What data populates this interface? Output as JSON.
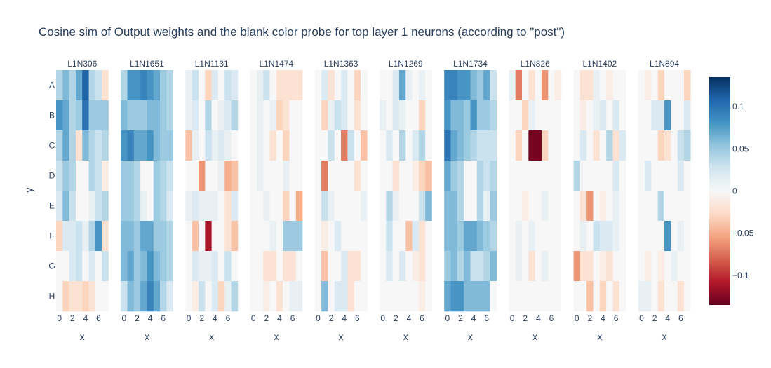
{
  "chart_data": {
    "type": "heatmap",
    "title": "Cosine sim of Output weights and the blank color probe for top layer 1 neurons (according to \"post\")",
    "ylabel": "y",
    "xlabel": "x",
    "x_ticks": [
      "0",
      "2",
      "4",
      "6"
    ],
    "x_tick_values": [
      0,
      2,
      4,
      6
    ],
    "y_categories": [
      "A",
      "B",
      "C",
      "D",
      "E",
      "F",
      "G",
      "H"
    ],
    "colorscale": "RdBu",
    "zmin": -0.135,
    "zmax": 0.135,
    "colorbar_ticks": [
      {
        "value": 0.1,
        "label": "0.1"
      },
      {
        "value": 0.05,
        "label": "0.05"
      },
      {
        "value": 0,
        "label": "0"
      },
      {
        "value": -0.05,
        "label": "−0.05"
      },
      {
        "value": -0.1,
        "label": "−0.1"
      }
    ],
    "panels": [
      {
        "name": "L1N306",
        "z": [
          [
            0.04,
            0.06,
            0.04,
            0.07,
            0.11,
            0.04,
            0.03,
            -0.02
          ],
          [
            0.08,
            0.07,
            0.04,
            0.05,
            0.1,
            0.05,
            0.05,
            0.05
          ],
          [
            0.04,
            0.07,
            0.04,
            -0.02,
            0.06,
            0.04,
            0.03,
            0.04
          ],
          [
            0.03,
            0.05,
            0.04,
            0.0,
            0.0,
            0.04,
            0.03,
            -0.01
          ],
          [
            0.02,
            0.06,
            0.03,
            0.0,
            0.0,
            0.01,
            0.03,
            0.04
          ],
          [
            -0.03,
            0.02,
            0.02,
            0.03,
            0.01,
            0.04,
            0.08,
            -0.02
          ],
          [
            0.0,
            0.0,
            0.02,
            0.03,
            0.0,
            0.02,
            0.0,
            0.03
          ],
          [
            0.0,
            -0.03,
            -0.02,
            -0.02,
            -0.03,
            -0.02,
            0.0,
            0.0
          ]
        ]
      },
      {
        "name": "L1N1651",
        "z": [
          [
            0.04,
            0.08,
            0.08,
            0.09,
            0.08,
            0.07,
            0.05,
            0.04
          ],
          [
            0.06,
            0.05,
            0.05,
            0.05,
            0.06,
            0.06,
            0.05,
            0.04
          ],
          [
            0.08,
            0.09,
            0.07,
            0.07,
            0.08,
            0.06,
            0.05,
            0.05
          ],
          [
            0.05,
            0.05,
            0.04,
            0.0,
            0.0,
            0.05,
            0.04,
            0.03
          ],
          [
            0.05,
            0.05,
            0.04,
            0.01,
            0.0,
            0.05,
            0.04,
            0.02
          ],
          [
            0.06,
            0.06,
            0.05,
            0.07,
            0.07,
            0.05,
            0.05,
            0.04
          ],
          [
            0.06,
            0.07,
            0.05,
            0.06,
            0.08,
            0.06,
            0.05,
            0.04
          ],
          [
            0.03,
            0.06,
            0.05,
            0.07,
            0.09,
            0.07,
            0.04,
            0.02
          ]
        ]
      },
      {
        "name": "L1N1131",
        "z": [
          [
            0.01,
            0.03,
            0.0,
            -0.03,
            0.02,
            0.0,
            0.03,
            0.02
          ],
          [
            0.01,
            0.02,
            0.0,
            0.04,
            0.0,
            0.01,
            0.02,
            0.04
          ],
          [
            -0.04,
            0.01,
            0.0,
            0.03,
            0.01,
            0.02,
            0.01,
            0.0
          ],
          [
            0.0,
            0.0,
            -0.06,
            0.0,
            0.0,
            0.01,
            -0.05,
            -0.04
          ],
          [
            0.01,
            0.02,
            0.01,
            0.01,
            0.01,
            0.0,
            -0.02,
            0.02
          ],
          [
            0.0,
            -0.04,
            0.0,
            -0.11,
            0.0,
            0.0,
            -0.02,
            -0.04
          ],
          [
            0.0,
            0.02,
            0.01,
            0.01,
            0.02,
            0.0,
            0.03,
            0.0
          ],
          [
            0.0,
            -0.01,
            0.03,
            0.0,
            0.02,
            -0.03,
            0.01,
            0.04
          ]
        ]
      },
      {
        "name": "L1N1474",
        "z": [
          [
            0.0,
            0.01,
            0.03,
            0.0,
            -0.02,
            -0.02,
            -0.02,
            -0.02
          ],
          [
            0.0,
            0.01,
            0.0,
            0.01,
            -0.03,
            -0.02,
            0.0,
            0.0
          ],
          [
            0.0,
            0.01,
            0.0,
            -0.02,
            0.0,
            -0.03,
            0.0,
            0.0
          ],
          [
            0.0,
            0.01,
            0.0,
            0.0,
            0.0,
            0.01,
            0.0,
            0.0
          ],
          [
            0.0,
            0.0,
            0.01,
            0.0,
            0.0,
            -0.03,
            0.0,
            -0.05
          ],
          [
            0.0,
            0.0,
            0.0,
            0.01,
            0.0,
            0.05,
            0.05,
            0.05
          ],
          [
            0.0,
            0.0,
            -0.02,
            -0.02,
            0.0,
            -0.02,
            -0.02,
            0.0
          ],
          [
            0.0,
            0.0,
            -0.01,
            0.0,
            -0.02,
            0.0,
            0.01,
            0.01
          ]
        ]
      },
      {
        "name": "L1N1363",
        "z": [
          [
            0.0,
            0.02,
            -0.02,
            0.0,
            0.02,
            0.0,
            -0.03,
            0.0
          ],
          [
            0.0,
            -0.03,
            0.01,
            0.03,
            0.02,
            0.0,
            -0.02,
            0.0
          ],
          [
            0.0,
            0.0,
            0.03,
            0.0,
            -0.07,
            0.03,
            0.0,
            -0.04
          ],
          [
            0.0,
            -0.07,
            0.0,
            0.0,
            0.0,
            0.0,
            -0.02,
            0.0
          ],
          [
            0.0,
            0.03,
            0.01,
            0.0,
            0.0,
            0.0,
            0.0,
            0.01
          ],
          [
            0.0,
            -0.01,
            0.0,
            0.02,
            0.0,
            0.0,
            0.0,
            0.0
          ],
          [
            0.0,
            -0.04,
            0.0,
            0.0,
            0.02,
            -0.02,
            -0.02,
            0.0
          ],
          [
            0.0,
            0.06,
            0.0,
            0.02,
            0.02,
            -0.02,
            0.0,
            0.0
          ]
        ]
      },
      {
        "name": "L1N1269",
        "z": [
          [
            0.0,
            0.0,
            0.02,
            0.07,
            0.01,
            0.0,
            0.01,
            0.0
          ],
          [
            0.01,
            0.0,
            0.02,
            0.01,
            0.0,
            0.0,
            -0.03,
            0.0
          ],
          [
            0.0,
            0.02,
            0.0,
            0.04,
            0.0,
            0.02,
            0.04,
            0.0
          ],
          [
            0.0,
            0.0,
            -0.02,
            0.0,
            0.0,
            -0.01,
            -0.03,
            -0.04
          ],
          [
            0.0,
            0.04,
            0.01,
            0.0,
            0.0,
            0.0,
            0.03,
            0.06
          ],
          [
            0.0,
            0.03,
            0.0,
            0.0,
            -0.04,
            0.02,
            -0.02,
            0.0
          ],
          [
            0.0,
            0.02,
            0.0,
            0.02,
            0.0,
            -0.01,
            -0.02,
            0.0
          ],
          [
            0.0,
            0.0,
            0.0,
            0.0,
            0.0,
            0.0,
            -0.01,
            0.0
          ]
        ]
      },
      {
        "name": "L1N1734",
        "z": [
          [
            0.09,
            0.09,
            0.08,
            0.08,
            0.06,
            0.05,
            0.07,
            0.03
          ],
          [
            0.08,
            0.06,
            0.06,
            0.05,
            0.08,
            0.05,
            0.05,
            0.04
          ],
          [
            0.1,
            0.07,
            0.06,
            0.05,
            0.04,
            0.03,
            0.03,
            0.03
          ],
          [
            0.07,
            0.05,
            0.04,
            0.0,
            0.0,
            0.04,
            0.03,
            0.04
          ],
          [
            0.06,
            0.06,
            0.04,
            0.0,
            0.0,
            0.04,
            0.01,
            0.05
          ],
          [
            0.06,
            0.06,
            0.05,
            0.07,
            0.07,
            0.06,
            0.05,
            0.04
          ],
          [
            0.05,
            0.06,
            0.04,
            0.06,
            0.03,
            0.03,
            0.04,
            0.06
          ],
          [
            0.07,
            0.08,
            0.08,
            0.06,
            0.06,
            0.06,
            0.06,
            0.0
          ]
        ]
      },
      {
        "name": "L1N826",
        "z": [
          [
            0.01,
            -0.07,
            0.0,
            -0.02,
            0.0,
            -0.06,
            0.0,
            -0.01
          ],
          [
            0.0,
            0.0,
            -0.03,
            0.01,
            0.0,
            0.0,
            0.0,
            0.0
          ],
          [
            0.0,
            -0.03,
            0.0,
            -0.13,
            -0.13,
            -0.03,
            0.0,
            0.0
          ],
          [
            0.0,
            0.0,
            0.0,
            0.0,
            0.0,
            0.0,
            0.0,
            0.0
          ],
          [
            0.0,
            0.0,
            -0.01,
            0.0,
            0.0,
            0.01,
            0.0,
            0.0
          ],
          [
            0.0,
            0.01,
            0.0,
            0.01,
            0.0,
            0.0,
            0.0,
            0.0
          ],
          [
            0.0,
            0.01,
            0.0,
            -0.02,
            0.0,
            0.01,
            0.0,
            0.0
          ],
          [
            0.0,
            0.0,
            0.0,
            0.0,
            0.0,
            0.0,
            0.0,
            0.0
          ]
        ]
      },
      {
        "name": "L1N1402",
        "z": [
          [
            0.0,
            -0.02,
            -0.02,
            0.01,
            0.0,
            -0.01,
            0.0,
            0.0
          ],
          [
            0.0,
            -0.01,
            0.0,
            0.01,
            0.02,
            0.0,
            0.02,
            0.0
          ],
          [
            0.0,
            0.02,
            0.0,
            -0.02,
            0.0,
            0.04,
            -0.02,
            0.02
          ],
          [
            0.04,
            0.0,
            0.0,
            0.0,
            0.0,
            0.0,
            0.02,
            0.0
          ],
          [
            0.0,
            -0.02,
            -0.06,
            0.0,
            -0.01,
            0.0,
            0.01,
            0.0
          ],
          [
            0.0,
            0.01,
            0.0,
            0.03,
            0.02,
            0.02,
            0.01,
            0.0
          ],
          [
            -0.06,
            -0.02,
            -0.02,
            0.0,
            -0.01,
            -0.02,
            0.0,
            0.0
          ],
          [
            0.0,
            0.0,
            -0.04,
            0.0,
            -0.03,
            0.0,
            -0.02,
            0.0
          ]
        ]
      },
      {
        "name": "L1N894",
        "z": [
          [
            0.0,
            -0.01,
            0.0,
            -0.03,
            0.0,
            0.0,
            0.0,
            -0.03
          ],
          [
            0.0,
            0.0,
            0.02,
            0.02,
            0.08,
            0.0,
            0.0,
            0.02
          ],
          [
            0.0,
            0.0,
            0.0,
            -0.03,
            -0.02,
            0.0,
            0.03,
            0.04
          ],
          [
            0.0,
            0.02,
            0.0,
            0.0,
            0.0,
            0.0,
            0.02,
            0.0
          ],
          [
            0.0,
            0.0,
            0.0,
            0.04,
            0.0,
            0.0,
            0.0,
            0.0
          ],
          [
            0.0,
            0.0,
            0.0,
            0.0,
            0.08,
            0.0,
            0.01,
            0.0
          ],
          [
            0.0,
            -0.01,
            0.0,
            -0.01,
            0.0,
            0.01,
            0.0,
            0.0
          ],
          [
            0.01,
            0.01,
            0.0,
            -0.02,
            0.0,
            0.0,
            -0.02,
            0.0
          ]
        ]
      }
    ]
  }
}
